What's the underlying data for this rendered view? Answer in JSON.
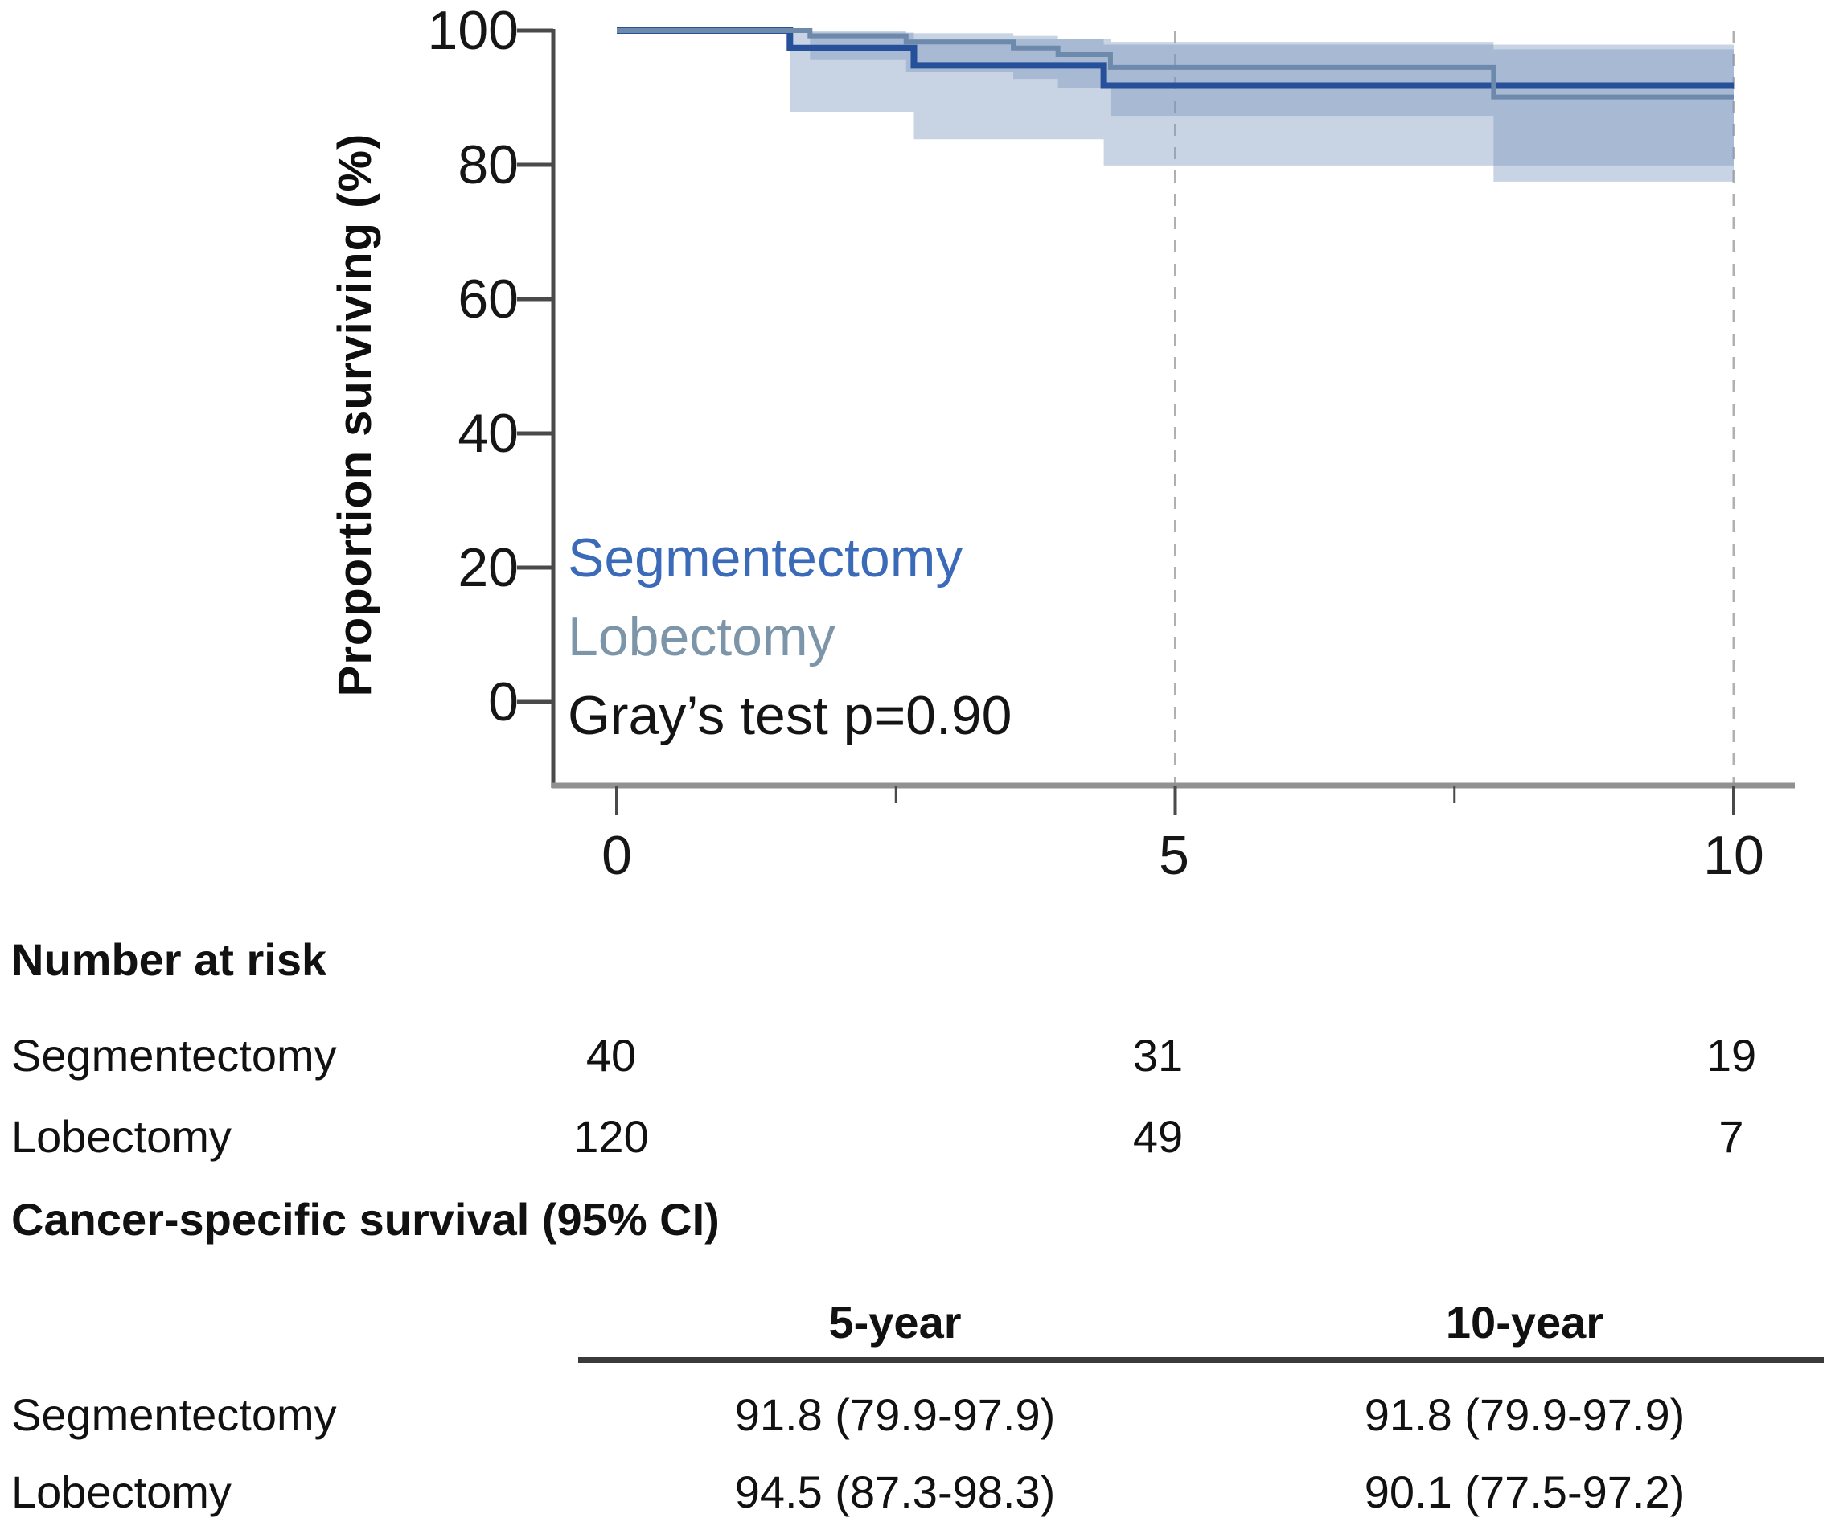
{
  "chart": {
    "y_axis_title": "Proportion surviving (%)",
    "y_ticks": [
      "100",
      "80",
      "60",
      "40",
      "20",
      "0"
    ],
    "x_ticks": [
      "0",
      "5",
      "10"
    ],
    "legend": {
      "seg": "Segmentectomy",
      "lob": "Lobectomy",
      "pvalue": "Gray’s test p=0.90"
    }
  },
  "chart_data": {
    "type": "line",
    "subtype": "kaplan-meier-step",
    "title": "",
    "xlabel": "",
    "ylabel": "Proportion surviving (%)",
    "xlim": [
      0,
      10
    ],
    "ylim": [
      0,
      100
    ],
    "x_ticks": [
      0,
      5,
      10
    ],
    "x_minor_ticks": [
      2.5,
      7.5
    ],
    "y_ticks": [
      100,
      80,
      60,
      40,
      20,
      0
    ],
    "dashed_vlines": [
      5,
      10
    ],
    "grid": "off",
    "legend_position": "inside-lower-left",
    "band_color": "#7d97bd",
    "annotations": [
      "Segmentectomy",
      "Lobectomy",
      "Gray’s test p=0.90"
    ],
    "series": [
      {
        "name": "Segmentectomy",
        "color": "#27509b",
        "end_t": 10,
        "steps": [
          [
            0,
            100
          ],
          [
            1.55,
            97.4
          ],
          [
            2.66,
            94.8
          ],
          [
            4.36,
            91.8
          ]
        ],
        "ci": [
          [
            1.55,
            2.66,
            87.9,
            99.7
          ],
          [
            2.66,
            4.36,
            83.8,
            98.7
          ],
          [
            4.36,
            10,
            79.9,
            97.9
          ]
        ]
      },
      {
        "name": "Lobectomy",
        "color": "#6d89ac",
        "end_t": 10,
        "steps": [
          [
            0,
            100
          ],
          [
            1.73,
            99.2
          ],
          [
            2.59,
            98.3
          ],
          [
            3.55,
            97.4
          ],
          [
            3.95,
            96.4
          ],
          [
            4.42,
            94.5
          ],
          [
            7.85,
            90.1
          ]
        ],
        "ci": [
          [
            1.73,
            2.59,
            95.6,
            99.9
          ],
          [
            2.59,
            3.55,
            93.8,
            99.6
          ],
          [
            3.55,
            3.95,
            92.8,
            99.2
          ],
          [
            3.95,
            4.42,
            91.5,
            98.8
          ],
          [
            4.42,
            7.85,
            87.3,
            98.3
          ],
          [
            7.85,
            10,
            77.5,
            97.2
          ]
        ]
      }
    ]
  },
  "colors": {
    "seg_line": "#27509b",
    "lob_line": "#6d89ac",
    "seg_label_text": "#3b6bb8",
    "lob_label_text": "#7d95a9",
    "ci_band": "#7d97bd",
    "dashed_line": "#b0b0b0",
    "axis_dark": "#4a4a4a",
    "x_axis_line": "#919191"
  },
  "risk_table": {
    "heading": "Number at risk",
    "rows": [
      {
        "label": "Segmentectomy",
        "values": [
          "40",
          "31",
          "19"
        ]
      },
      {
        "label": "Lobectomy",
        "values": [
          "120",
          "49",
          "7"
        ]
      }
    ]
  },
  "survival_table": {
    "heading": "Cancer-specific survival (95% CI)",
    "col_headers": [
      "5-year",
      "10-year"
    ],
    "rows": [
      {
        "label": "Segmentectomy",
        "values": [
          "91.8 (79.9-97.9)",
          "91.8 (79.9-97.9)"
        ]
      },
      {
        "label": "Lobectomy",
        "values": [
          "94.5 (87.3-98.3)",
          "90.1 (77.5-97.2)"
        ]
      }
    ]
  }
}
